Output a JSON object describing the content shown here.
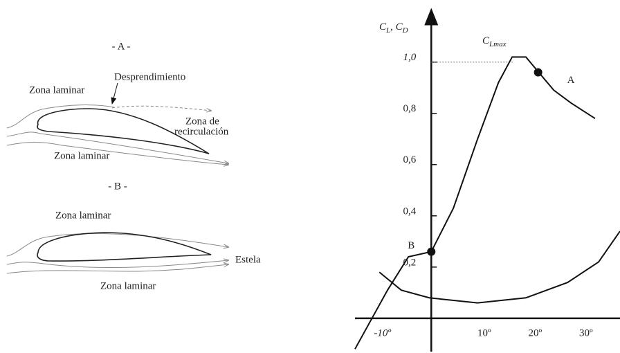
{
  "diagram": {
    "a_title": "- A -",
    "a_separation": "Desprendimiento",
    "a_upper": "Zona laminar",
    "a_recirc_1": "Zona de",
    "a_recirc_2": "recirculación",
    "a_lower": "Zona laminar",
    "b_title": "- B -",
    "b_upper": "Zona laminar",
    "b_wake": "Estela",
    "b_lower": "Zona laminar"
  },
  "chart_data": {
    "type": "line",
    "y_label": [
      "C",
      "L",
      ", C",
      "D"
    ],
    "cl_max_label": [
      "C",
      "Lmax"
    ],
    "xlim": [
      -15,
      37.1
    ],
    "ylim": [
      -0.13,
      1.21
    ],
    "xticks": [
      {
        "value": -10,
        "label": "-10º"
      },
      {
        "value": 10,
        "label": "10º"
      },
      {
        "value": 20,
        "label": "20º"
      },
      {
        "value": 30,
        "label": "30º"
      }
    ],
    "yticks": [
      {
        "value": 0.2,
        "label": "0,2"
      },
      {
        "value": 0.4,
        "label": "0,4"
      },
      {
        "value": 0.6,
        "label": "0,6"
      },
      {
        "value": 0.8,
        "label": "0,8"
      },
      {
        "value": 1.0,
        "label": "1,0"
      }
    ],
    "color": "#111111",
    "series": [
      {
        "x": [
          -15,
          -8.6,
          -4.5,
          0,
          4.35,
          9.1,
          13.2,
          15.9,
          18.6,
          20.7,
          24.1,
          27.5,
          32.2
        ],
        "values": [
          -0.12,
          0.11,
          0.24,
          0.26,
          0.43,
          0.7,
          0.92,
          1.02,
          1.02,
          0.97,
          0.89,
          0.84,
          0.78
        ]
      },
      {
        "x": [
          -10.2,
          -5.9,
          -0.4,
          9.1,
          18.6,
          26.8,
          32.9,
          37.1
        ],
        "values": [
          0.18,
          0.11,
          0.08,
          0.06,
          0.08,
          0.14,
          0.22,
          0.34
        ]
      }
    ],
    "points": [
      {
        "label": "A",
        "x": 21,
        "y": 0.96
      },
      {
        "label": "B",
        "x": 0,
        "y": 0.26
      }
    ]
  }
}
